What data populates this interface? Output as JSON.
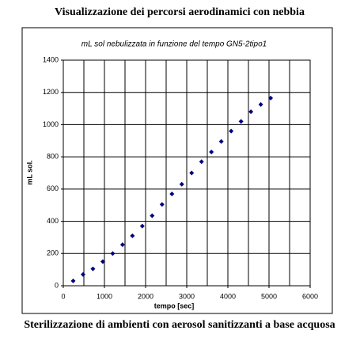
{
  "header": {
    "title": "Visualizzazione  dei percorsi aerodinamici con nebbia"
  },
  "caption": "Sterilizzazione di ambienti con aerosol sanitizzanti a base acquosa",
  "chart_data": {
    "type": "scatter",
    "title": "mL sol nebulizzata in funzione del tempo GN5-2tipo1",
    "x_label": "tempo [sec]",
    "y_label": "mL sol.",
    "x": [
      240,
      480,
      720,
      960,
      1200,
      1440,
      1680,
      1920,
      2160,
      2400,
      2640,
      2880,
      3120,
      3360,
      3600,
      3840,
      4080,
      4320,
      4560,
      4800,
      5040
    ],
    "values": [
      30,
      70,
      105,
      150,
      200,
      255,
      310,
      370,
      435,
      505,
      570,
      630,
      700,
      770,
      830,
      895,
      960,
      1020,
      1080,
      1125,
      1165
    ],
    "color": "#00007f",
    "xlim": [
      0,
      6000
    ],
    "xticks": [
      0,
      1000,
      2000,
      3000,
      4000,
      5000,
      6000
    ],
    "xminorticks": [
      500,
      1500,
      2500,
      3500,
      4500,
      5500
    ],
    "ylim": [
      0,
      1400
    ],
    "yticks": [
      0,
      200,
      400,
      600,
      800,
      1000,
      1200,
      1400
    ],
    "grid": true
  }
}
